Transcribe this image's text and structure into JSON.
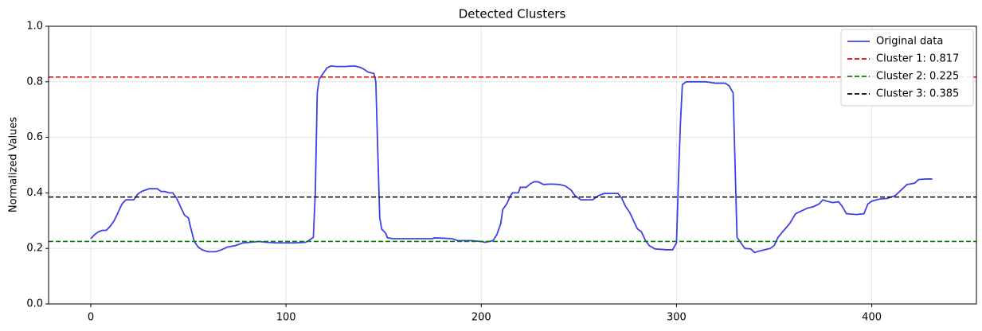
{
  "chart_data": {
    "type": "line",
    "title": "Detected Clusters",
    "ylabel": "Normalized Values",
    "x": [
      0,
      2,
      4,
      6,
      8,
      10,
      12,
      14,
      16,
      18,
      20,
      22,
      24,
      26,
      28,
      30,
      34,
      36,
      38,
      40,
      42,
      44,
      46,
      48,
      50,
      51,
      53,
      55,
      57,
      60,
      64,
      67,
      70,
      74,
      78,
      82,
      86,
      90,
      95,
      100,
      105,
      110,
      112,
      114,
      115,
      116,
      117,
      119,
      121,
      123,
      126,
      130,
      135,
      138,
      140,
      142,
      145,
      146,
      147,
      148,
      149,
      151,
      152,
      155,
      160,
      165,
      170,
      175,
      176,
      180,
      185,
      188,
      195,
      200,
      202,
      206,
      208,
      210,
      211,
      213,
      215,
      216,
      219,
      220,
      223,
      225,
      227,
      229,
      232,
      236,
      240,
      243,
      246,
      248,
      251,
      257,
      260,
      263,
      270,
      272,
      274,
      276,
      278,
      280,
      282,
      284,
      286,
      289,
      295,
      298,
      300,
      301,
      302,
      303,
      305,
      315,
      320,
      325,
      327,
      329,
      330,
      331,
      333,
      335,
      338,
      340,
      342,
      345,
      348,
      350,
      352,
      355,
      358,
      361,
      364,
      367,
      370,
      373,
      375,
      377,
      380,
      383,
      385,
      387,
      392,
      396,
      398,
      400,
      404,
      408,
      412,
      415,
      418,
      422,
      424,
      428,
      431
    ],
    "series": [
      {
        "name": "Original data",
        "color": "#4040e8",
        "values": [
          0.235,
          0.25,
          0.26,
          0.265,
          0.265,
          0.28,
          0.3,
          0.33,
          0.36,
          0.375,
          0.375,
          0.375,
          0.395,
          0.405,
          0.41,
          0.415,
          0.415,
          0.405,
          0.405,
          0.4,
          0.4,
          0.38,
          0.35,
          0.32,
          0.31,
          0.28,
          0.225,
          0.205,
          0.195,
          0.188,
          0.188,
          0.195,
          0.205,
          0.21,
          0.22,
          0.222,
          0.225,
          0.222,
          0.22,
          0.22,
          0.22,
          0.222,
          0.23,
          0.24,
          0.4,
          0.76,
          0.81,
          0.83,
          0.85,
          0.857,
          0.855,
          0.855,
          0.857,
          0.852,
          0.845,
          0.835,
          0.83,
          0.8,
          0.55,
          0.31,
          0.27,
          0.255,
          0.238,
          0.235,
          0.235,
          0.235,
          0.235,
          0.235,
          0.238,
          0.237,
          0.235,
          0.228,
          0.228,
          0.225,
          0.222,
          0.228,
          0.25,
          0.29,
          0.34,
          0.36,
          0.39,
          0.4,
          0.4,
          0.42,
          0.42,
          0.432,
          0.44,
          0.44,
          0.43,
          0.432,
          0.43,
          0.425,
          0.41,
          0.39,
          0.375,
          0.375,
          0.39,
          0.398,
          0.398,
          0.38,
          0.35,
          0.33,
          0.3,
          0.27,
          0.26,
          0.23,
          0.21,
          0.198,
          0.195,
          0.195,
          0.22,
          0.45,
          0.65,
          0.79,
          0.8,
          0.8,
          0.795,
          0.795,
          0.785,
          0.76,
          0.5,
          0.24,
          0.22,
          0.2,
          0.198,
          0.185,
          0.19,
          0.195,
          0.2,
          0.21,
          0.24,
          0.265,
          0.29,
          0.325,
          0.335,
          0.345,
          0.35,
          0.36,
          0.375,
          0.37,
          0.365,
          0.368,
          0.35,
          0.325,
          0.322,
          0.325,
          0.36,
          0.37,
          0.378,
          0.38,
          0.39,
          0.41,
          0.43,
          0.435,
          0.448,
          0.45,
          0.45
        ]
      }
    ],
    "hlines": [
      {
        "name": "Cluster 1: 0.817",
        "value": 0.817,
        "color": "#dd0000"
      },
      {
        "name": "Cluster 2: 0.225",
        "value": 0.225,
        "color": "#008000"
      },
      {
        "name": "Cluster 3: 0.385",
        "value": 0.385,
        "color": "#000000"
      }
    ],
    "xlim": [
      -21.6,
      453.6
    ],
    "xticks": [
      0,
      100,
      200,
      300,
      400
    ],
    "ylim": [
      0,
      1
    ],
    "yticks": [
      {
        "value": 0,
        "label": "0.0"
      },
      {
        "value": 0.2,
        "label": "0.2"
      },
      {
        "value": 0.4,
        "label": "0.4"
      },
      {
        "value": 0.6,
        "label": "0.6"
      },
      {
        "value": 0.8,
        "label": "0.8"
      },
      {
        "value": 1,
        "label": "1.0"
      }
    ],
    "grid": true,
    "legend": "upper-right"
  }
}
